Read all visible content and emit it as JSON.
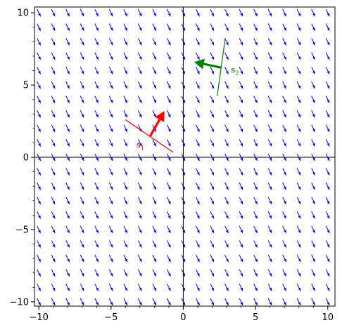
{
  "chart_data": {
    "type": "vector-field",
    "title": "",
    "xlabel": "",
    "ylabel": "",
    "xlim": [
      -10.3,
      10.5
    ],
    "ylim": [
      -10.3,
      10.4
    ],
    "xticks": [
      -10,
      -5,
      0,
      5,
      10
    ],
    "yticks": [
      -10,
      -5,
      0,
      5,
      10
    ],
    "xtick_labels": [
      "−10",
      "−5",
      "0",
      "5",
      "10"
    ],
    "ytick_labels": [
      "−10",
      "−5",
      "0",
      "5",
      "10"
    ],
    "field": {
      "x_range": [
        -10,
        10
      ],
      "y_range": [
        -10,
        10
      ],
      "step": 1,
      "direction": [
        0.44,
        -0.9
      ],
      "arrow_length": 0.55,
      "color": "#0000ff"
    },
    "annotations": [
      {
        "label_main": "s",
        "label_sub": "1",
        "color": "#ff0000",
        "line": {
          "x1": -4.0,
          "y1": 2.6,
          "x2": -0.7,
          "y2": 0.35
        },
        "arrow": {
          "x1": -2.3,
          "y1": 1.45,
          "x2": -1.3,
          "y2": 3.2
        },
        "label_pos": {
          "x": -3.25,
          "y": 0.65
        }
      },
      {
        "label_main": "s",
        "label_sub": "2",
        "color": "#008000",
        "line": {
          "x1": 2.35,
          "y1": 4.25,
          "x2": 2.9,
          "y2": 8.2
        },
        "arrow": {
          "x1": 2.65,
          "y1": 6.2,
          "x2": 0.75,
          "y2": 6.6
        },
        "label_pos": {
          "x": 3.3,
          "y": 5.85
        }
      }
    ]
  }
}
